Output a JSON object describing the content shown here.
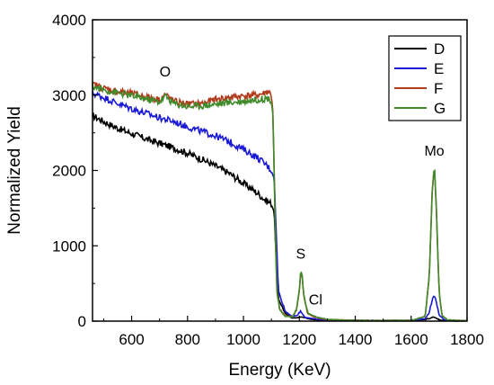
{
  "chart_data": {
    "type": "line",
    "title": "",
    "xlabel": "Energy (KeV)",
    "ylabel": "Normalized Yield",
    "xlim": [
      460,
      1800
    ],
    "ylim": [
      0,
      4000
    ],
    "x_ticks": [
      600,
      800,
      1000,
      1200,
      1400,
      1600,
      1800
    ],
    "y_ticks": [
      0,
      1000,
      2000,
      3000,
      4000
    ],
    "x_tick_labels": [
      "600",
      "800",
      "1000",
      "1200",
      "1400",
      "1600",
      "1800"
    ],
    "y_tick_labels": [
      "0",
      "1000",
      "2000",
      "3000",
      "4000"
    ],
    "legend_position": "top-right",
    "grid": false,
    "annotations": [
      {
        "text": "O",
        "x": 720,
        "y": 3250
      },
      {
        "text": "S",
        "x": 1205,
        "y": 830
      },
      {
        "text": "Cl",
        "x": 1258,
        "y": 220
      },
      {
        "text": "Mo",
        "x": 1683,
        "y": 2200
      }
    ],
    "series": [
      {
        "name": "D",
        "color": "#000000",
        "x": [
          465,
          500,
          550,
          600,
          650,
          700,
          750,
          800,
          850,
          900,
          950,
          1000,
          1050,
          1080,
          1100,
          1110,
          1115,
          1125,
          1150,
          1175,
          1200,
          1210,
          1230,
          1250,
          1300,
          1400,
          1500,
          1600,
          1650,
          1670,
          1680,
          1690,
          1700,
          1750,
          1800
        ],
        "y": [
          2720,
          2650,
          2560,
          2490,
          2420,
          2360,
          2300,
          2230,
          2150,
          2060,
          1960,
          1830,
          1700,
          1600,
          1560,
          1450,
          1000,
          300,
          100,
          40,
          50,
          55,
          35,
          20,
          10,
          8,
          6,
          8,
          20,
          40,
          55,
          40,
          15,
          5,
          3
        ]
      },
      {
        "name": "E",
        "color": "#1a1ad6",
        "x": [
          465,
          500,
          550,
          600,
          650,
          700,
          750,
          800,
          850,
          900,
          950,
          1000,
          1050,
          1080,
          1100,
          1110,
          1115,
          1125,
          1150,
          1175,
          1195,
          1200,
          1205,
          1210,
          1220,
          1240,
          1260,
          1300,
          1400,
          1500,
          1600,
          1650,
          1665,
          1675,
          1683,
          1690,
          1700,
          1720,
          1750,
          1800
        ],
        "y": [
          3020,
          2970,
          2890,
          2820,
          2760,
          2700,
          2650,
          2580,
          2520,
          2460,
          2380,
          2280,
          2170,
          2080,
          2000,
          1900,
          1400,
          400,
          130,
          60,
          80,
          120,
          130,
          100,
          50,
          40,
          25,
          12,
          8,
          6,
          8,
          30,
          120,
          280,
          340,
          260,
          80,
          15,
          5,
          3
        ]
      },
      {
        "name": "F",
        "color": "#b03a1a",
        "x": [
          465,
          500,
          550,
          600,
          650,
          700,
          720,
          750,
          800,
          850,
          900,
          950,
          1000,
          1050,
          1070,
          1090,
          1100,
          1105,
          1110,
          1115,
          1120,
          1130,
          1150,
          1175,
          1190,
          1200,
          1205,
          1210,
          1215,
          1230,
          1250,
          1270,
          1300,
          1400,
          1500,
          1600,
          1650,
          1665,
          1675,
          1683,
          1690,
          1700,
          1710,
          1730,
          1800
        ],
        "y": [
          3140,
          3090,
          3050,
          3020,
          2980,
          2940,
          3010,
          2920,
          2880,
          2890,
          2940,
          2970,
          2990,
          3000,
          3020,
          3050,
          3000,
          2800,
          2000,
          1000,
          400,
          150,
          70,
          60,
          150,
          400,
          620,
          600,
          350,
          100,
          60,
          40,
          20,
          10,
          8,
          10,
          60,
          600,
          1700,
          2080,
          1500,
          400,
          80,
          15,
          5
        ]
      },
      {
        "name": "G",
        "color": "#3f8a2a",
        "x": [
          465,
          500,
          550,
          600,
          650,
          700,
          720,
          750,
          800,
          850,
          900,
          950,
          1000,
          1050,
          1070,
          1090,
          1100,
          1105,
          1110,
          1115,
          1120,
          1130,
          1150,
          1175,
          1190,
          1200,
          1205,
          1210,
          1215,
          1230,
          1250,
          1270,
          1300,
          1400,
          1500,
          1600,
          1650,
          1665,
          1675,
          1683,
          1690,
          1700,
          1710,
          1730,
          1800
        ],
        "y": [
          3110,
          3070,
          3030,
          2990,
          2950,
          2910,
          2990,
          2890,
          2850,
          2860,
          2880,
          2900,
          2920,
          2940,
          2950,
          2960,
          2920,
          2750,
          1950,
          950,
          380,
          140,
          65,
          55,
          160,
          420,
          670,
          620,
          360,
          110,
          70,
          45,
          22,
          10,
          8,
          10,
          60,
          600,
          1700,
          2090,
          1500,
          400,
          80,
          15,
          5
        ]
      }
    ]
  }
}
